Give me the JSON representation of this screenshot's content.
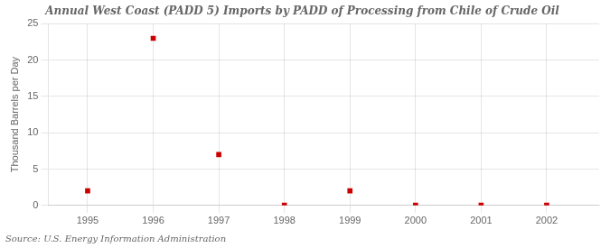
{
  "chart_data": {
    "type": "scatter",
    "title": "Annual West Coast (PADD 5) Imports by PADD of Processing from Chile of Crude Oil",
    "y_label": "Thousand Barrels per Day",
    "source": "Source: U.S. Energy Information Administration",
    "x": [
      1995,
      1996,
      1997,
      1998,
      1999,
      2000,
      2001,
      2002
    ],
    "values": [
      2.0,
      23.0,
      7.0,
      0.04,
      2.0,
      0.04,
      0.04,
      0.04
    ],
    "color": "#cc0000",
    "marker": "square",
    "xlim": [
      1994.4,
      2002.8
    ],
    "xticks": [
      1995,
      1996,
      1997,
      1998,
      1999,
      2000,
      2001,
      2002
    ],
    "ylim": [
      0,
      25
    ],
    "yticks": [
      0,
      5,
      10,
      15,
      20,
      25
    ],
    "grid": true
  }
}
